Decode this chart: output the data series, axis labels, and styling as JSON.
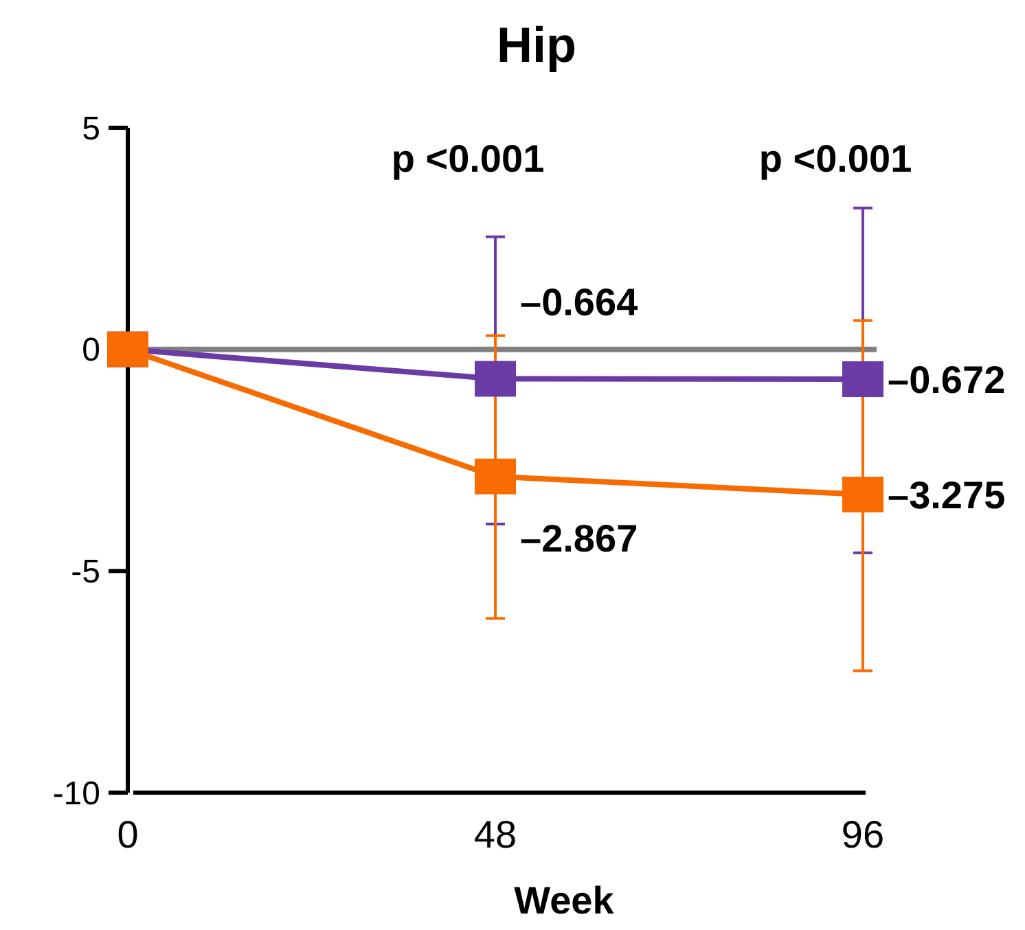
{
  "chart_data": {
    "type": "line",
    "title": "Hip",
    "xlabel": "Week",
    "x": [
      0,
      48,
      96
    ],
    "xlim": [
      0,
      96
    ],
    "xticks": [
      0,
      48,
      96
    ],
    "ylim": [
      -10,
      5
    ],
    "yticks": [
      5,
      0,
      -5,
      -10
    ],
    "grid": false,
    "marker": "square",
    "line_style": "solid",
    "series": [
      {
        "color": "#6a3aa5",
        "values": [
          0,
          -0.664,
          -0.672
        ],
        "errors": [
          null,
          [
            -3.94,
            2.54
          ],
          [
            -4.59,
            3.19
          ]
        ],
        "value_labels": [
          null,
          "–0.664",
          "–0.672"
        ]
      },
      {
        "color": "#f76b00",
        "values": [
          0,
          -2.867,
          -3.275
        ],
        "errors": [
          null,
          [
            -6.07,
            0.31
          ],
          [
            -7.25,
            0.65
          ]
        ],
        "value_labels": [
          null,
          "–2.867",
          "–3.275"
        ]
      }
    ],
    "ref_lines": [
      {
        "axis": "y",
        "value": 0,
        "color": "#808080"
      }
    ],
    "annotations": [
      "p <0.001",
      "p <0.001"
    ]
  }
}
